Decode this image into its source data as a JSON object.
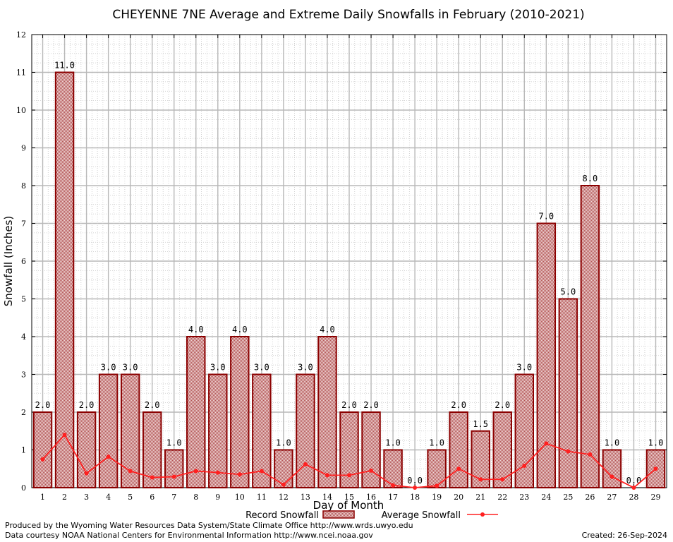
{
  "chart_data": {
    "type": "bar",
    "title": "CHEYENNE 7NE Average and Extreme Daily Snowfalls in February (2010-2021)",
    "xlabel": "Day of Month",
    "ylabel": "Snowfall (Inches)",
    "ylim": [
      0,
      12
    ],
    "yticks": [
      "0",
      "1",
      "2",
      "3",
      "4",
      "5",
      "6",
      "7",
      "8",
      "9",
      "10",
      "11",
      "12"
    ],
    "categories": [
      "1",
      "2",
      "3",
      "4",
      "5",
      "6",
      "7",
      "8",
      "9",
      "10",
      "11",
      "12",
      "13",
      "14",
      "15",
      "16",
      "17",
      "18",
      "19",
      "20",
      "21",
      "22",
      "23",
      "24",
      "25",
      "26",
      "27",
      "28",
      "29"
    ],
    "grid": true,
    "legend_position": "bottom",
    "series": [
      {
        "name": "Record Snowfall",
        "kind": "bar",
        "color": "#8b0000",
        "values": [
          2.0,
          11.0,
          2.0,
          3.0,
          3.0,
          2.0,
          1.0,
          4.0,
          3.0,
          4.0,
          3.0,
          1.0,
          3.0,
          4.0,
          2.0,
          2.0,
          1.0,
          0.0,
          1.0,
          2.0,
          1.5,
          2.0,
          3.0,
          7.0,
          5.0,
          8.0,
          1.0,
          0.0,
          1.0
        ],
        "labels": [
          "2.0",
          "11.0",
          "2.0",
          "3.0",
          "3.0",
          "2.0",
          "1.0",
          "4.0",
          "3.0",
          "4.0",
          "3.0",
          "1.0",
          "3.0",
          "4.0",
          "2.0",
          "2.0",
          "1.0",
          "0.0",
          "1.0",
          "2.0",
          "1.5",
          "2.0",
          "3.0",
          "7.0",
          "5.0",
          "8.0",
          "1.0",
          "0.0",
          "1.0"
        ]
      },
      {
        "name": "Average Snowfall",
        "kind": "line",
        "color": "#ff2020",
        "values": [
          0.75,
          1.4,
          0.38,
          0.82,
          0.44,
          0.27,
          0.29,
          0.44,
          0.4,
          0.35,
          0.44,
          0.08,
          0.62,
          0.33,
          0.33,
          0.45,
          0.06,
          0.0,
          0.05,
          0.5,
          0.22,
          0.22,
          0.58,
          1.17,
          0.96,
          0.88,
          0.29,
          0.0,
          0.5
        ]
      }
    ]
  },
  "footer": {
    "produced_by": "Produced by the Wyoming Water Resources Data System/State Climate Office http://www.wrds.uwyo.edu",
    "data_courtesy": "Data courtesy NOAA National Centers for Environmental Information http://www.ncei.noaa.gov",
    "created": "Created:  26-Sep-2024"
  }
}
